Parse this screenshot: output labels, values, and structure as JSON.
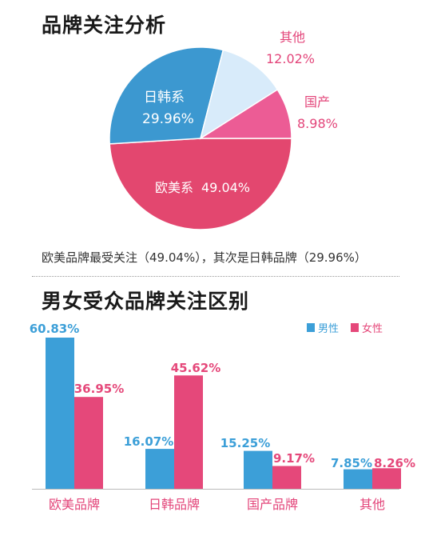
{
  "pie_title": "品牌关注分析",
  "summary": "欧美品牌最受关注（49.04%），其次是日韩品牌（29.96%）",
  "bar_title": "男女受众品牌关注区别",
  "colors": {
    "pie_euro": "#e3476f",
    "pie_jpkr": "#3c98d0",
    "pie_other": "#d8ebfa",
    "pie_domestic": "#ec5c95",
    "male": "#3c9fd8",
    "female": "#e5487a",
    "label_pink": "#e3457a"
  },
  "chart_data": [
    {
      "type": "pie",
      "title": "品牌关注分析",
      "slices": [
        {
          "label": "欧美系",
          "value": 49.04,
          "value_label": "49.04%",
          "color": "#e3476f"
        },
        {
          "label": "日韩系",
          "value": 29.96,
          "value_label": "29.96%",
          "color": "#3c98d0"
        },
        {
          "label": "其他",
          "value": 12.02,
          "value_label": "12.02%",
          "color": "#d8ebfa"
        },
        {
          "label": "国产",
          "value": 8.98,
          "value_label": "8.98%",
          "color": "#ec5c95"
        }
      ]
    },
    {
      "type": "bar",
      "title": "男女受众品牌关注区别",
      "categories": [
        "欧美品牌",
        "日韩品牌",
        "国产品牌",
        "其他"
      ],
      "series": [
        {
          "name": "男性",
          "values": [
            60.83,
            16.07,
            15.25,
            7.85
          ],
          "labels": [
            "60.83%",
            "16.07%",
            "15.25%",
            "7.85%"
          ],
          "color": "#3c9fd8"
        },
        {
          "name": "女性",
          "values": [
            36.95,
            45.62,
            9.17,
            8.26
          ],
          "labels": [
            "36.95%",
            "45.62%",
            "9.17%",
            "8.26%"
          ],
          "color": "#e5487a"
        }
      ],
      "legend": "top-right",
      "ylim": [
        0,
        60.83
      ],
      "grid": false
    }
  ]
}
